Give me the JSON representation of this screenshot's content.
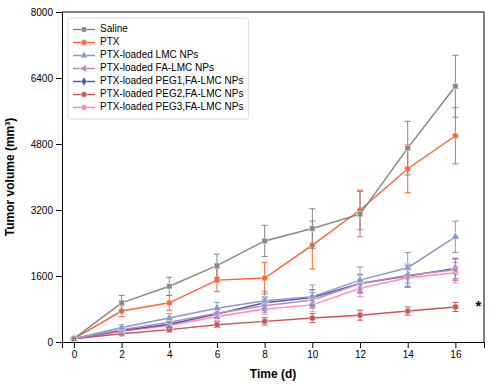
{
  "chart_data": {
    "type": "line",
    "xlabel": "Time (d)",
    "ylabel": "Tumor volume (mm³)",
    "x": [
      0,
      2,
      4,
      6,
      8,
      10,
      12,
      14,
      16
    ],
    "series": [
      {
        "name": "Saline",
        "color": "#888888",
        "marker": "square",
        "values": [
          80,
          950,
          1350,
          1850,
          2450,
          2750,
          3100,
          4700,
          6200
        ],
        "errors": [
          15,
          180,
          220,
          280,
          380,
          480,
          550,
          650,
          750
        ]
      },
      {
        "name": "PTX",
        "color": "#FF6633",
        "marker": "circle",
        "values": [
          80,
          750,
          950,
          1500,
          1550,
          2350,
          3200,
          4200,
          5000
        ],
        "errors": [
          15,
          130,
          180,
          280,
          380,
          580,
          480,
          580,
          680
        ]
      },
      {
        "name": "PTX-loaded LMC NPs",
        "color": "#8899CC",
        "marker": "triangle-up",
        "values": [
          80,
          350,
          580,
          820,
          1000,
          1100,
          1500,
          1800,
          2550
        ],
        "errors": [
          15,
          70,
          110,
          140,
          230,
          280,
          320,
          370,
          380
        ]
      },
      {
        "name": "PTX-loaded FA-LMC NPs",
        "color": "#BB88BB",
        "marker": "triangle-left",
        "values": [
          80,
          300,
          480,
          700,
          880,
          1020,
          1420,
          1620,
          1750
        ],
        "errors": [
          15,
          60,
          90,
          110,
          160,
          180,
          220,
          270,
          260
        ]
      },
      {
        "name": "PTX-loaded PEG1,FA-LMC NPs",
        "color": "#5555AA",
        "marker": "diamond",
        "values": [
          80,
          280,
          430,
          680,
          950,
          1080,
          1420,
          1600,
          1780
        ],
        "errors": [
          15,
          55,
          80,
          100,
          140,
          185,
          210,
          260,
          250
        ]
      },
      {
        "name": "PTX-loaded PEG2,FA-LMC NPs",
        "color": "#CC5555",
        "marker": "circle",
        "values": [
          80,
          200,
          300,
          420,
          500,
          580,
          650,
          750,
          850
        ],
        "errors": [
          15,
          40,
          55,
          70,
          90,
          110,
          120,
          100,
          110
        ]
      },
      {
        "name": "PTX-loaded PEG3,FA-LMC NPs",
        "color": "#FF88BB",
        "marker": "circle",
        "values": [
          80,
          260,
          400,
          620,
          800,
          900,
          1300,
          1560,
          1680
        ],
        "errors": [
          15,
          50,
          72,
          92,
          128,
          165,
          195,
          240,
          245
        ]
      }
    ],
    "xlim": [
      -0.5,
      17.2
    ],
    "ylim": [
      0,
      8000
    ],
    "xticks": [
      0,
      2,
      4,
      6,
      8,
      10,
      12,
      14,
      16
    ],
    "yticks": [
      0,
      1600,
      3200,
      4800,
      6400,
      8000
    ],
    "annotations": [
      {
        "text": "*",
        "x": 16.8,
        "y": 850
      }
    ],
    "grid": false,
    "legend": "upper left"
  }
}
